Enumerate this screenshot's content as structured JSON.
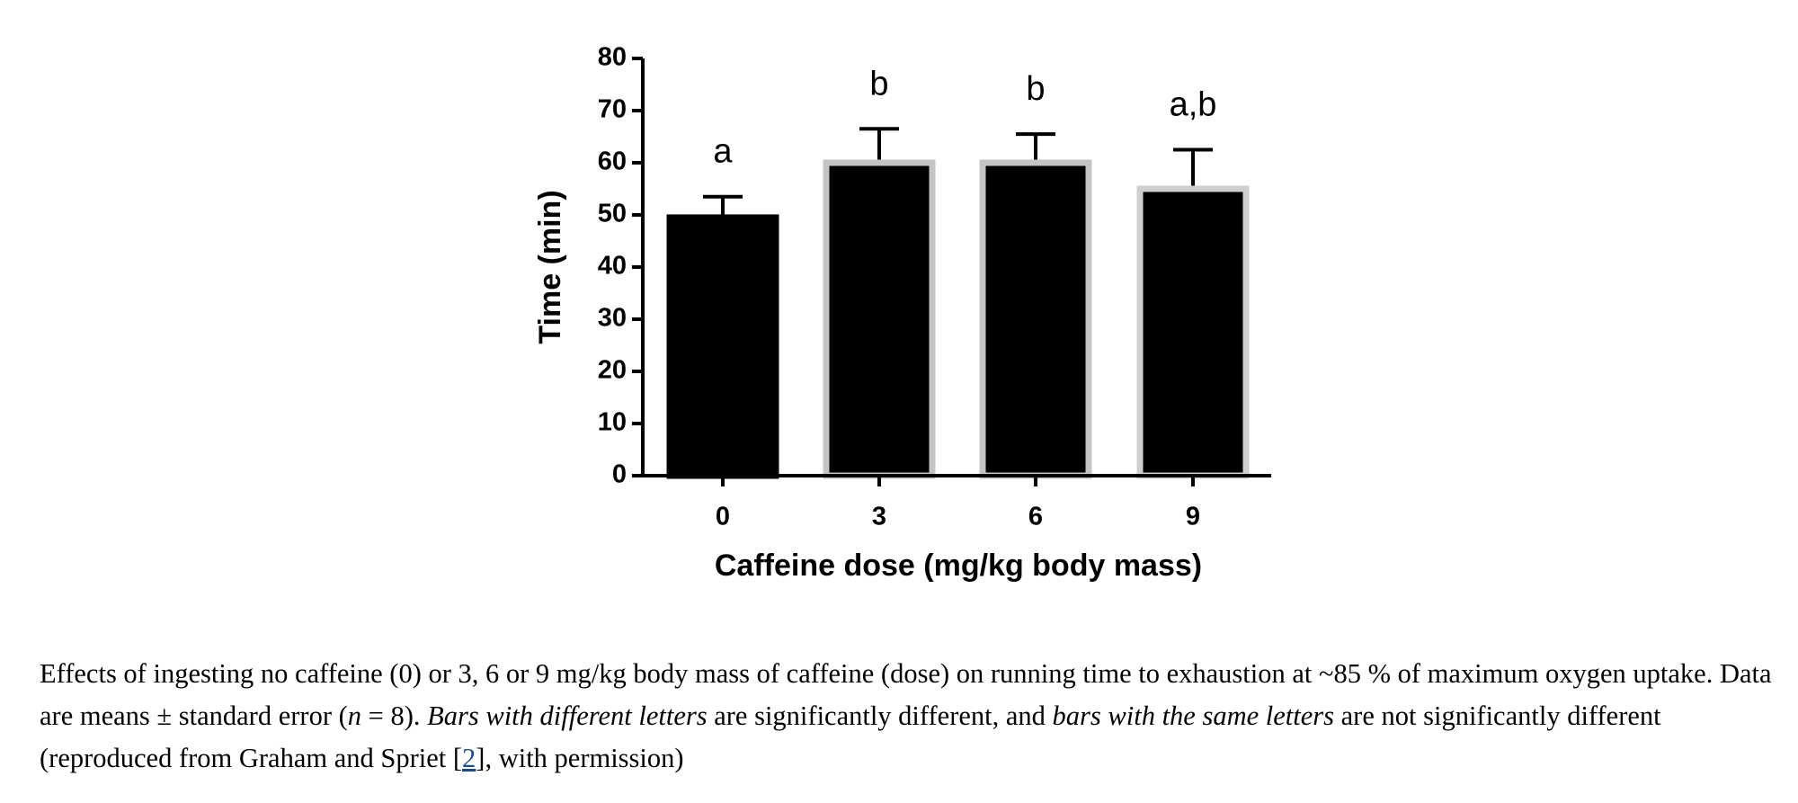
{
  "chart_data": {
    "type": "bar",
    "categories": [
      "0",
      "3",
      "6",
      "9"
    ],
    "values": [
      49.5,
      60,
      60,
      55
    ],
    "errors": [
      4,
      6.5,
      5.5,
      7.5
    ],
    "annotations": [
      "a",
      "b",
      "b",
      "a,b"
    ],
    "color": "#000000",
    "edgecolors": [
      "#000000",
      "#c4c4c4",
      "#c4c4c4",
      "#cfcfcf"
    ],
    "ylim": [
      0,
      80
    ],
    "yticks": [
      0,
      10,
      20,
      30,
      40,
      50,
      60,
      70,
      80
    ],
    "ylabel": "Time (min)",
    "xlabel": "Caffeine dose (mg/kg body mass)"
  },
  "caption": {
    "parts": [
      "Effects of ingesting no caffeine (0) or 3, 6 or 9 mg/kg body mass of caffeine (dose) on running time to exhaustion at ~85 % of maximum oxygen uptake. Data are means ± standard error (",
      "n",
      " = 8). ",
      "Bars with different letters",
      " are significantly different, and ",
      "bars with the same letters",
      " are not significantly different (reproduced from Graham and Spriet [",
      "2",
      "], with permission)"
    ]
  }
}
